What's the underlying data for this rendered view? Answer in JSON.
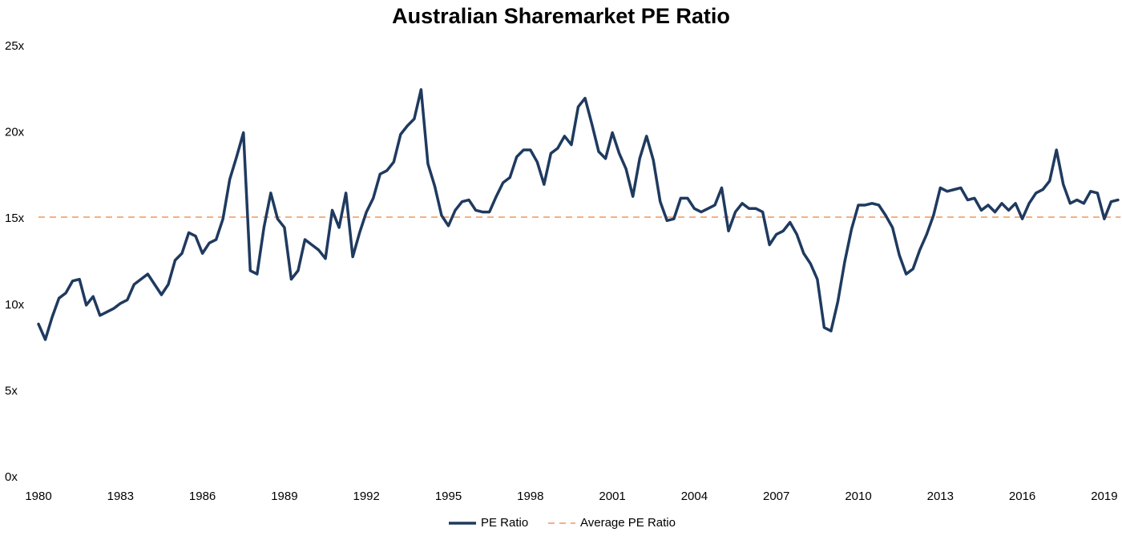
{
  "chart_data": {
    "type": "line",
    "title": "Australian Sharemarket PE Ratio",
    "x": [
      1980,
      1980.25,
      1980.5,
      1980.75,
      1981,
      1981.25,
      1981.5,
      1981.75,
      1982,
      1982.25,
      1982.5,
      1982.75,
      1983,
      1983.25,
      1983.5,
      1983.75,
      1984,
      1984.25,
      1984.5,
      1984.75,
      1985,
      1985.25,
      1985.5,
      1985.75,
      1986,
      1986.25,
      1986.5,
      1986.75,
      1987,
      1987.25,
      1987.5,
      1987.75,
      1988,
      1988.25,
      1988.5,
      1988.75,
      1989,
      1989.25,
      1989.5,
      1989.75,
      1990,
      1990.25,
      1990.5,
      1990.75,
      1991,
      1991.25,
      1991.5,
      1991.75,
      1992,
      1992.25,
      1992.5,
      1992.75,
      1993,
      1993.25,
      1993.5,
      1993.75,
      1994,
      1994.25,
      1994.5,
      1994.75,
      1995,
      1995.25,
      1995.5,
      1995.75,
      1996,
      1996.25,
      1996.5,
      1996.75,
      1997,
      1997.25,
      1997.5,
      1997.75,
      1998,
      1998.25,
      1998.5,
      1998.75,
      1999,
      1999.25,
      1999.5,
      1999.75,
      2000,
      2000.25,
      2000.5,
      2000.75,
      2001,
      2001.25,
      2001.5,
      2001.75,
      2002,
      2002.25,
      2002.5,
      2002.75,
      2003,
      2003.25,
      2003.5,
      2003.75,
      2004,
      2004.25,
      2004.5,
      2004.75,
      2005,
      2005.25,
      2005.5,
      2005.75,
      2006,
      2006.25,
      2006.5,
      2006.75,
      2007,
      2007.25,
      2007.5,
      2007.75,
      2008,
      2008.25,
      2008.5,
      2008.75,
      2009,
      2009.25,
      2009.5,
      2009.75,
      2010,
      2010.25,
      2010.5,
      2010.75,
      2011,
      2011.25,
      2011.5,
      2011.75,
      2012,
      2012.25,
      2012.5,
      2012.75,
      2013,
      2013.25,
      2013.5,
      2013.75,
      2014,
      2014.25,
      2014.5,
      2014.75,
      2015,
      2015.25,
      2015.5,
      2015.75,
      2016,
      2016.25,
      2016.5,
      2016.75,
      2017,
      2017.25,
      2017.5,
      2017.75,
      2018,
      2018.25,
      2018.5,
      2018.75,
      2019,
      2019.25,
      2019.5
    ],
    "series": [
      {
        "name": "PE Ratio",
        "color": "#1f3a5f",
        "values": [
          8.9,
          8.0,
          9.3,
          10.4,
          10.7,
          11.4,
          11.5,
          10.0,
          10.5,
          9.4,
          9.6,
          9.8,
          10.1,
          10.3,
          11.2,
          11.5,
          11.8,
          11.2,
          10.6,
          11.2,
          12.6,
          13.0,
          14.2,
          14.0,
          13.0,
          13.6,
          13.8,
          15.0,
          17.3,
          18.6,
          20.0,
          12.0,
          11.8,
          14.5,
          16.5,
          15.0,
          14.5,
          11.5,
          12.0,
          13.8,
          13.5,
          13.2,
          12.7,
          15.5,
          14.5,
          16.5,
          12.8,
          14.2,
          15.4,
          16.2,
          17.6,
          17.8,
          18.3,
          19.9,
          20.4,
          20.8,
          22.5,
          18.2,
          16.9,
          15.2,
          14.6,
          15.5,
          16.0,
          16.1,
          15.5,
          15.4,
          15.4,
          16.3,
          17.1,
          17.4,
          18.6,
          19.0,
          19.0,
          18.3,
          17.0,
          18.8,
          19.1,
          19.8,
          19.3,
          21.5,
          22.0,
          20.5,
          18.9,
          18.5,
          20.0,
          18.8,
          17.9,
          16.3,
          18.5,
          19.8,
          18.4,
          16.0,
          14.9,
          15.0,
          16.2,
          16.2,
          15.6,
          15.4,
          15.6,
          15.8,
          16.8,
          14.3,
          15.4,
          15.9,
          15.6,
          15.6,
          15.4,
          13.5,
          14.1,
          14.3,
          14.8,
          14.1,
          13.0,
          12.4,
          11.5,
          8.7,
          8.5,
          10.2,
          12.5,
          14.4,
          15.8,
          15.8,
          15.9,
          15.8,
          15.2,
          14.5,
          12.9,
          11.8,
          12.1,
          13.2,
          14.1,
          15.2,
          16.8,
          16.6,
          16.7,
          16.8,
          16.1,
          16.2,
          15.5,
          15.8,
          15.4,
          15.9,
          15.5,
          15.9,
          15.0,
          15.9,
          16.5,
          16.7,
          17.2,
          19.0,
          17.0,
          15.9,
          16.1,
          15.9,
          16.6,
          16.5,
          15.0,
          16.0,
          16.1
        ]
      }
    ],
    "average": {
      "name": "Average PE Ratio",
      "color": "#f4b183",
      "value": 15.1,
      "dashed": true
    },
    "xlim": [
      1980,
      2019.6
    ],
    "xticks": [
      1980,
      1983,
      1986,
      1989,
      1992,
      1995,
      1998,
      2001,
      2004,
      2007,
      2010,
      2013,
      2016,
      2019
    ],
    "ylim": [
      0,
      25
    ],
    "yticks": [
      {
        "value": 0,
        "label": "0x"
      },
      {
        "value": 5,
        "label": "5x"
      },
      {
        "value": 10,
        "label": "10x"
      },
      {
        "value": 15,
        "label": "15x"
      },
      {
        "value": 20,
        "label": "20x"
      },
      {
        "value": 25,
        "label": "25x"
      }
    ],
    "grid": false,
    "legend": "bottom"
  }
}
